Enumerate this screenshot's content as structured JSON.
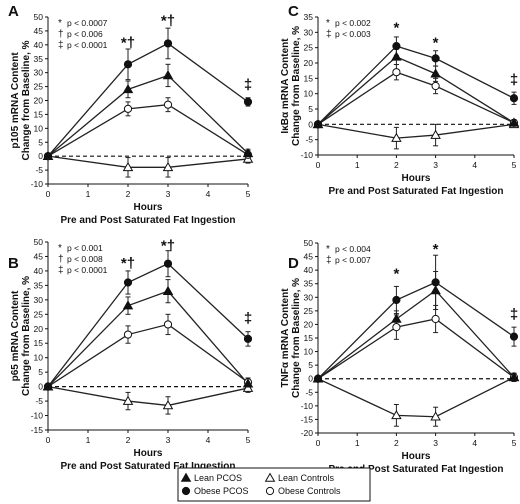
{
  "chart_data": [
    {
      "type": "line",
      "panel_letter": "A",
      "ylabel": [
        "p105 mRNA Content",
        "Change from Baseline, %"
      ],
      "xlabel": [
        "Hours",
        "Pre and Post Saturated Fat Ingestion"
      ],
      "xlim": [
        0,
        5
      ],
      "ylim": [
        -10,
        50
      ],
      "yticks": [
        -10,
        -5,
        0,
        5,
        10,
        15,
        20,
        25,
        30,
        35,
        40,
        45,
        50
      ],
      "xticks": [
        0,
        1,
        2,
        3,
        4,
        5
      ],
      "stats": [
        {
          "symbol": "*",
          "text": "p < 0.0007"
        },
        {
          "symbol": "†",
          "text": "p < 0.006"
        },
        {
          "symbol": "‡",
          "text": "p < 0.0001"
        }
      ],
      "annotations": [
        {
          "x": 2,
          "y": 39,
          "text": "*†"
        },
        {
          "x": 3,
          "y": 47,
          "text": "*†"
        },
        {
          "x": 5,
          "y": 24,
          "text": "‡"
        }
      ],
      "series": [
        {
          "key": "lean_pcos",
          "x": [
            0,
            2,
            3,
            5
          ],
          "y": [
            0,
            24,
            29,
            1
          ],
          "err": [
            0,
            3,
            4,
            1.5
          ]
        },
        {
          "key": "obese_pcos",
          "x": [
            0,
            2,
            3,
            5
          ],
          "y": [
            0,
            33,
            40.5,
            19.5
          ],
          "err": [
            0,
            5.5,
            5.5,
            1.5
          ]
        },
        {
          "key": "lean_controls",
          "x": [
            0,
            2,
            3,
            5
          ],
          "y": [
            0,
            -4,
            -4,
            -1
          ],
          "err": [
            0,
            3.5,
            3.5,
            1.5
          ]
        },
        {
          "key": "obese_controls",
          "x": [
            0,
            2,
            3,
            5
          ],
          "y": [
            0,
            17,
            18.5,
            0.5
          ],
          "err": [
            0,
            2.5,
            2.5,
            1.5
          ]
        }
      ]
    },
    {
      "type": "line",
      "panel_letter": "B",
      "ylabel": [
        "p65 mRNA Content",
        "Change from Baseline, %"
      ],
      "xlabel": [
        "Hours",
        "Pre and Post Saturated Fat Ingestion"
      ],
      "xlim": [
        0,
        5
      ],
      "ylim": [
        -15,
        50
      ],
      "yticks": [
        -15,
        -10,
        -5,
        0,
        5,
        10,
        15,
        20,
        25,
        30,
        35,
        40,
        45,
        50
      ],
      "xticks": [
        0,
        1,
        2,
        3,
        4,
        5
      ],
      "stats": [
        {
          "symbol": "*",
          "text": "p < 0.001"
        },
        {
          "symbol": "†",
          "text": "p < 0.008"
        },
        {
          "symbol": "‡",
          "text": "p < 0.0001"
        }
      ],
      "annotations": [
        {
          "x": 2,
          "y": 41,
          "text": "*†"
        },
        {
          "x": 3,
          "y": 47,
          "text": "*†"
        },
        {
          "x": 5,
          "y": 22,
          "text": "‡"
        }
      ],
      "series": [
        {
          "key": "lean_pcos",
          "x": [
            0,
            2,
            3,
            5
          ],
          "y": [
            0,
            28,
            33,
            1
          ],
          "err": [
            0,
            3,
            4,
            1.5
          ]
        },
        {
          "key": "obese_pcos",
          "x": [
            0,
            2,
            3,
            5
          ],
          "y": [
            0,
            36,
            42.5,
            16.5
          ],
          "err": [
            0,
            4,
            4.5,
            2.5
          ]
        },
        {
          "key": "lean_controls",
          "x": [
            0,
            2,
            3,
            5
          ],
          "y": [
            0,
            -5,
            -6.5,
            -0.5
          ],
          "err": [
            0,
            3,
            3,
            1.5
          ]
        },
        {
          "key": "obese_controls",
          "x": [
            0,
            2,
            3,
            5
          ],
          "y": [
            0,
            18,
            21.5,
            1.5
          ],
          "err": [
            0,
            3,
            3.5,
            1.5
          ]
        }
      ]
    },
    {
      "type": "line",
      "panel_letter": "C",
      "ylabel": [
        "IκBα mRNA Content",
        "Change from Baseline, %"
      ],
      "xlabel": [
        "Hours",
        "Pre and Post Saturated Fat Ingestion"
      ],
      "xlim": [
        0,
        5
      ],
      "ylim": [
        -10,
        35
      ],
      "yticks": [
        -10,
        -5,
        0,
        5,
        10,
        15,
        20,
        25,
        30,
        35
      ],
      "xticks": [
        0,
        1,
        2,
        3,
        4,
        5
      ],
      "stats": [
        {
          "symbol": "*",
          "text": "p < 0.002"
        },
        {
          "symbol": "‡",
          "text": "p < 0.003"
        }
      ],
      "annotations": [
        {
          "x": 2,
          "y": 30,
          "text": "*"
        },
        {
          "x": 3,
          "y": 25,
          "text": "*"
        },
        {
          "x": 5,
          "y": 13,
          "text": "‡"
        }
      ],
      "series": [
        {
          "key": "lean_pcos",
          "x": [
            0,
            2,
            3,
            5
          ],
          "y": [
            0,
            22,
            16.5,
            0.5
          ],
          "err": [
            0,
            2.5,
            2.5,
            1
          ]
        },
        {
          "key": "obese_pcos",
          "x": [
            0,
            2,
            3,
            5
          ],
          "y": [
            0,
            25.5,
            21.5,
            8.5
          ],
          "err": [
            0,
            3,
            2.5,
            2
          ]
        },
        {
          "key": "lean_controls",
          "x": [
            0,
            2,
            3,
            5
          ],
          "y": [
            0,
            -4.5,
            -3.5,
            0
          ],
          "err": [
            0,
            3.5,
            3.5,
            1
          ]
        },
        {
          "key": "obese_controls",
          "x": [
            0,
            2,
            3,
            5
          ],
          "y": [
            0,
            17,
            12.5,
            0.5
          ],
          "err": [
            0,
            2.5,
            2.5,
            1
          ]
        }
      ]
    },
    {
      "type": "line",
      "panel_letter": "D",
      "ylabel": [
        "TNFα mRNA Content",
        "Change from Baseline, %"
      ],
      "xlabel": [
        "Hours",
        "Pre and Post Saturated Fat Ingestion"
      ],
      "xlim": [
        0,
        5
      ],
      "ylim": [
        -20,
        50
      ],
      "yticks": [
        -20,
        -15,
        -10,
        -5,
        0,
        5,
        10,
        15,
        20,
        25,
        30,
        35,
        40,
        45,
        50
      ],
      "xticks": [
        0,
        1,
        2,
        3,
        4,
        5
      ],
      "stats": [
        {
          "symbol": "*",
          "text": "p < 0.004"
        },
        {
          "symbol": "‡",
          "text": "p < 0.007"
        }
      ],
      "annotations": [
        {
          "x": 2,
          "y": 37,
          "text": "*"
        },
        {
          "x": 3,
          "y": 46,
          "text": "*"
        },
        {
          "x": 5,
          "y": 22,
          "text": "‡"
        }
      ],
      "series": [
        {
          "key": "lean_pcos",
          "x": [
            0,
            2,
            3,
            5
          ],
          "y": [
            0,
            22,
            32.5,
            0.5
          ],
          "err": [
            0,
            3,
            7,
            1.5
          ]
        },
        {
          "key": "obese_pcos",
          "x": [
            0,
            2,
            3,
            5
          ],
          "y": [
            0,
            29,
            35.5,
            15.5
          ],
          "err": [
            0,
            5,
            10,
            3.5
          ]
        },
        {
          "key": "lean_controls",
          "x": [
            0,
            2,
            3,
            5
          ],
          "y": [
            0,
            -13.5,
            -14,
            0.5
          ],
          "err": [
            0,
            4,
            3.5,
            1.5
          ]
        },
        {
          "key": "obese_controls",
          "x": [
            0,
            2,
            3,
            5
          ],
          "y": [
            0,
            19,
            22,
            0.5
          ],
          "err": [
            0,
            4.5,
            5,
            1.5
          ]
        }
      ]
    }
  ],
  "legend": [
    {
      "key": "lean_pcos",
      "label": "Lean PCOS",
      "marker": "triangle",
      "fill": "#111111"
    },
    {
      "key": "lean_controls",
      "label": "Lean Controls",
      "marker": "triangle",
      "fill": "#ffffff"
    },
    {
      "key": "obese_pcos",
      "label": "Obese PCOS",
      "marker": "circle",
      "fill": "#111111"
    },
    {
      "key": "obese_controls",
      "label": "Obese Controls",
      "marker": "circle",
      "fill": "#ffffff"
    }
  ],
  "colors": {
    "ink": "#111111",
    "open_fill": "#ffffff"
  }
}
